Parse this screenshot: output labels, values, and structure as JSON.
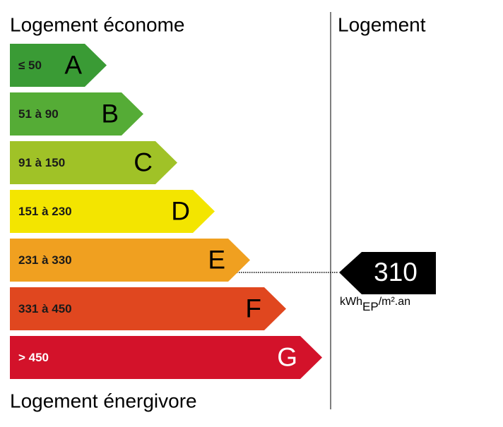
{
  "header": {
    "left": "Logement économe",
    "right": "Logement"
  },
  "classes": [
    {
      "range": "≤ 50",
      "letter": "A"
    },
    {
      "range": "51 à 90",
      "letter": "B"
    },
    {
      "range": "91 à 150",
      "letter": "C"
    },
    {
      "range": "151 à 230",
      "letter": "D"
    },
    {
      "range": "231 à 330",
      "letter": "E"
    },
    {
      "range": "331 à 450",
      "letter": "F"
    },
    {
      "range": "> 450",
      "letter": "G"
    }
  ],
  "footer": "Logement énergivore",
  "indicator": {
    "value": "310",
    "unit": "kWh",
    "unit_sub": "EP",
    "unit_suffix": "/m².an"
  }
}
